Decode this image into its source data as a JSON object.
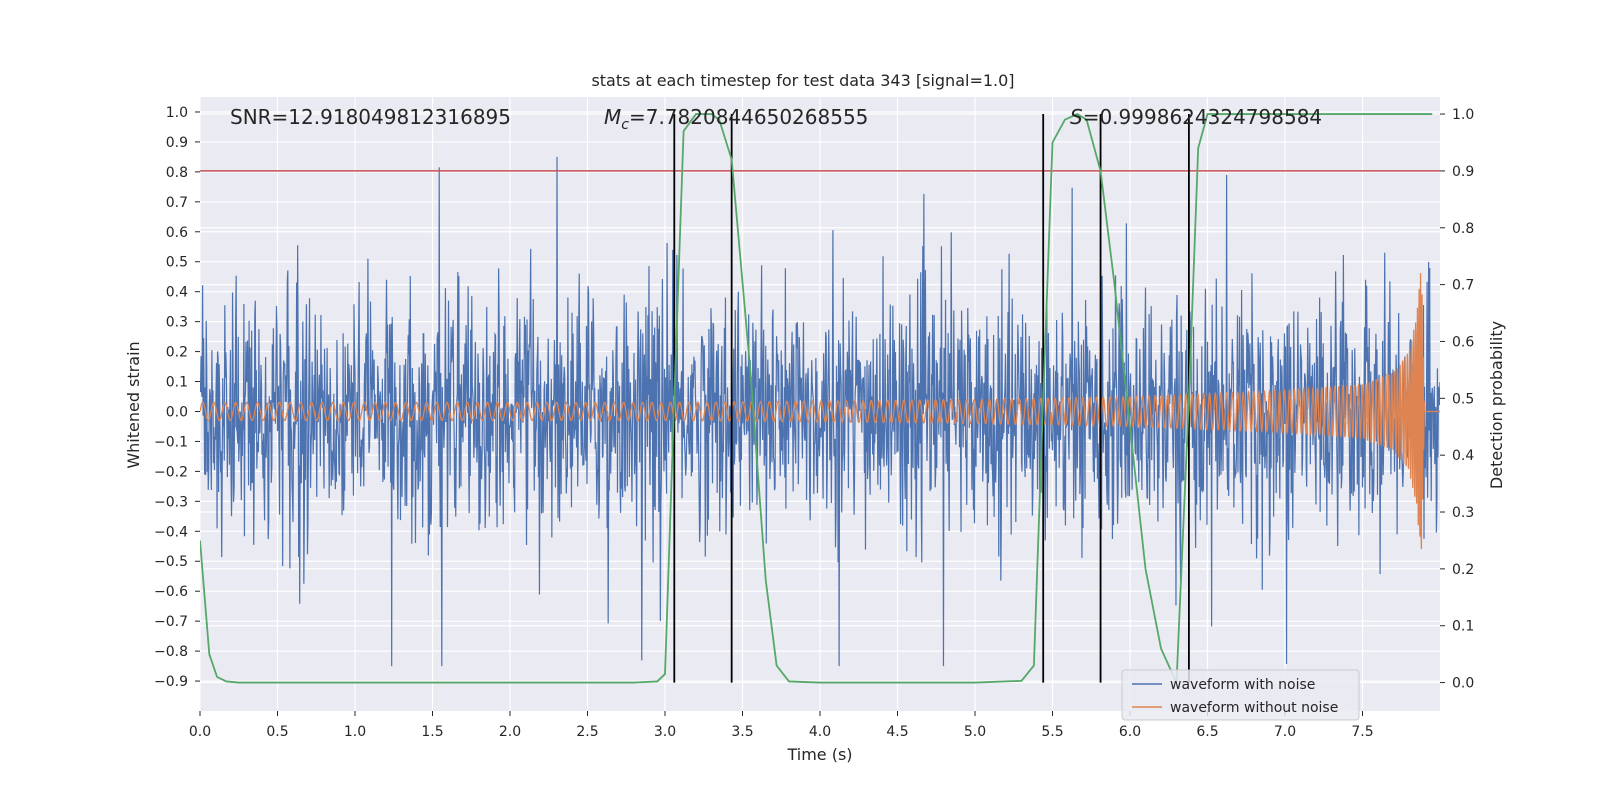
{
  "chart_data": {
    "type": "line",
    "title": "stats at each timestep for test data 343 [signal=1.0]",
    "xlabel": "Time (s)",
    "ylabel": "Whitened strain",
    "y2label": "Detection probability",
    "xlim": [
      0.0,
      8.0
    ],
    "ylim": [
      -1.0,
      1.05
    ],
    "y2lim": [
      -0.05,
      1.03
    ],
    "xticks": [
      "0.0",
      "0.5",
      "1.0",
      "1.5",
      "2.0",
      "2.5",
      "3.0",
      "3.5",
      "4.0",
      "4.5",
      "5.0",
      "5.5",
      "6.0",
      "6.5",
      "7.0",
      "7.5"
    ],
    "yticks": [
      "1.0",
      "0.9",
      "0.8",
      "0.7",
      "0.6",
      "0.5",
      "0.4",
      "0.3",
      "0.2",
      "0.1",
      "0.0",
      "−0.1",
      "−0.2",
      "−0.3",
      "−0.4",
      "−0.5",
      "−0.6",
      "−0.7",
      "−0.8",
      "−0.9"
    ],
    "y2ticks": [
      "1.0",
      "0.9",
      "0.8",
      "0.7",
      "0.6",
      "0.5",
      "0.4",
      "0.3",
      "0.2",
      "0.1",
      "0.0"
    ],
    "grid": true,
    "legend_position": "bottom-right",
    "annotations": {
      "snr": "SNR=12.918049812316895",
      "mc_symbol": "M",
      "mc_sub": "c",
      "mc_value": "=7.7820844650268555",
      "s_symbol": "S",
      "s_value": "=0.9998624324798584"
    },
    "threshold_line": {
      "y2": 0.9,
      "color": "#c44e52"
    },
    "vertical_markers": [
      3.06,
      3.43,
      5.44,
      5.81,
      6.38
    ],
    "series": [
      {
        "name": "waveform with noise",
        "color": "#4c72b0",
        "noise_amplitude": 0.85,
        "axis": "left"
      },
      {
        "name": "waveform without noise",
        "color": "#dd8452",
        "axis": "left",
        "envelope": {
          "t": [
            0.0,
            3.0,
            5.0,
            6.0,
            7.0,
            7.5,
            7.7,
            7.8,
            7.85,
            7.88,
            7.9
          ],
          "amp": [
            0.03,
            0.03,
            0.04,
            0.05,
            0.07,
            0.09,
            0.13,
            0.2,
            0.32,
            0.5,
            0.0
          ]
        }
      },
      {
        "name": "detection probability",
        "color": "#55a868",
        "axis": "right",
        "x": [
          0.0,
          0.06,
          0.11,
          0.17,
          0.25,
          0.5,
          1.0,
          2.0,
          2.8,
          2.95,
          3.0,
          3.06,
          3.12,
          3.2,
          3.3,
          3.35,
          3.43,
          3.55,
          3.65,
          3.72,
          3.8,
          4.0,
          4.5,
          5.0,
          5.3,
          5.38,
          5.44,
          5.5,
          5.58,
          5.66,
          5.72,
          5.81,
          5.9,
          6.0,
          6.1,
          6.2,
          6.3,
          6.38,
          6.44,
          6.5,
          6.7,
          7.0,
          7.5,
          7.95
        ],
        "values": [
          0.25,
          0.05,
          0.01,
          0.002,
          0.0,
          0.0,
          0.0,
          0.0,
          0.0,
          0.002,
          0.015,
          0.5,
          0.97,
          1.0,
          1.0,
          0.99,
          0.92,
          0.55,
          0.18,
          0.03,
          0.002,
          0.0,
          0.0,
          0.0,
          0.003,
          0.03,
          0.5,
          0.95,
          0.99,
          1.0,
          0.99,
          0.9,
          0.7,
          0.45,
          0.2,
          0.06,
          0.0,
          0.5,
          0.94,
          1.0,
          1.0,
          1.0,
          1.0,
          1.0
        ]
      }
    ]
  }
}
